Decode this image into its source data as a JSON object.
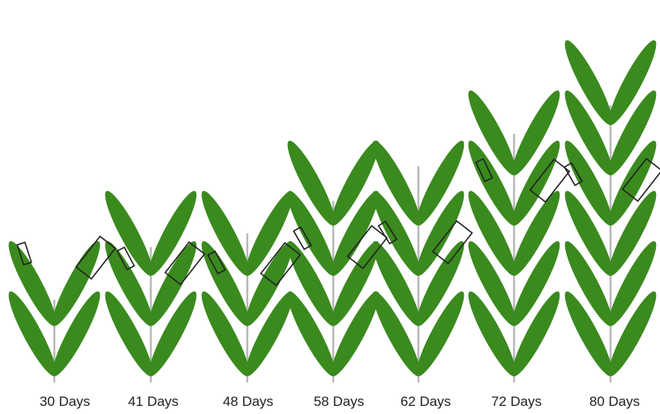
{
  "diagram": {
    "leaf_color": "#3a8a1e",
    "stem_color": "#b8b8b8",
    "box_color": "#222222",
    "stages": [
      {
        "label": "30 Days",
        "leaf_pairs": 2
      },
      {
        "label": "41 Days",
        "leaf_pairs": 3
      },
      {
        "label": "48 Days",
        "leaf_pairs": 3
      },
      {
        "label": "58 Days",
        "leaf_pairs": 4
      },
      {
        "label": "62 Days",
        "leaf_pairs": 4
      },
      {
        "label": "72 Days",
        "leaf_pairs": 5
      },
      {
        "label": "80 Days",
        "leaf_pairs": 6
      }
    ]
  }
}
